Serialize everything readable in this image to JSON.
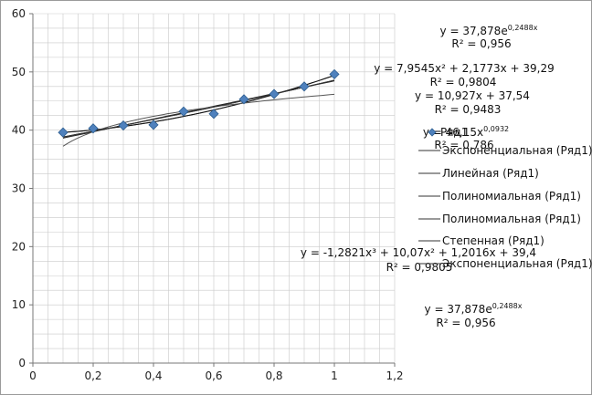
{
  "chart_data": {
    "type": "scatter",
    "xlim": [
      0,
      1.2
    ],
    "ylim": [
      0,
      60
    ],
    "x_ticks": [
      "0",
      "0,2",
      "0,4",
      "0,6",
      "0,8",
      "1",
      "1,2"
    ],
    "y_ticks": [
      "0",
      "10",
      "20",
      "30",
      "40",
      "50",
      "60"
    ],
    "grid": "on",
    "series": [
      {
        "name": "Ряд1",
        "marker": "diamond",
        "color": "#4f81bd",
        "points": [
          {
            "x": 0.1,
            "y": 39.6
          },
          {
            "x": 0.2,
            "y": 40.3
          },
          {
            "x": 0.3,
            "y": 40.8
          },
          {
            "x": 0.4,
            "y": 40.9
          },
          {
            "x": 0.5,
            "y": 43.2
          },
          {
            "x": 0.6,
            "y": 42.8
          },
          {
            "x": 0.7,
            "y": 45.3
          },
          {
            "x": 0.8,
            "y": 46.2
          },
          {
            "x": 0.9,
            "y": 47.5
          },
          {
            "x": 1.0,
            "y": 49.6
          }
        ]
      }
    ],
    "trendlines": [
      {
        "kind": "exponential",
        "a": 37.878,
        "b": 0.2488,
        "legend": "Экспоненциальная (Ряд1)"
      },
      {
        "kind": "linear",
        "a": 10.927,
        "b": 37.54,
        "legend": "Линейная (Ряд1)"
      },
      {
        "kind": "poly2",
        "coef": [
          7.9545,
          2.1773,
          39.29
        ],
        "legend": "Полиномиальная (Ряд1)"
      },
      {
        "kind": "poly3",
        "coef": [
          -1.2821,
          10.07,
          1.2016,
          39.4
        ],
        "legend": "Полиномиальная (Ряд1)"
      },
      {
        "kind": "power",
        "a": 46.15,
        "b": 0.0932,
        "legend": "Степенная (Ряд1)"
      },
      {
        "kind": "exponential",
        "a": 37.878,
        "b": 0.2488,
        "legend": "Экспоненциальная (Ряд1)"
      }
    ],
    "legend_placement": "right",
    "legend_series_label": "Ряд1",
    "annotations": [
      {
        "eq_base": "y = 37,878e",
        "eq_sup": "0,2488x",
        "r2": "R² = 0,956"
      },
      {
        "eq_base": "y = 7,9545x² + 2,1773x + 39,29",
        "eq_sup": "",
        "r2": "R² = 0,9804"
      },
      {
        "eq_base": "y = 10,927x + 37,54",
        "eq_sup": "",
        "r2": "R² = 0,9483"
      },
      {
        "eq_base": "y = 46,15x",
        "eq_sup": "0,0932",
        "r2": "R² = 0,786"
      },
      {
        "eq_base": "y = -1,2821x³ + 10,07x² + 1,2016x + 39,4",
        "eq_sup": "",
        "r2": "R² = 0,9805"
      },
      {
        "eq_base": "y = 37,878e",
        "eq_sup": "0,2488x",
        "r2": "R² = 0,956"
      }
    ]
  }
}
